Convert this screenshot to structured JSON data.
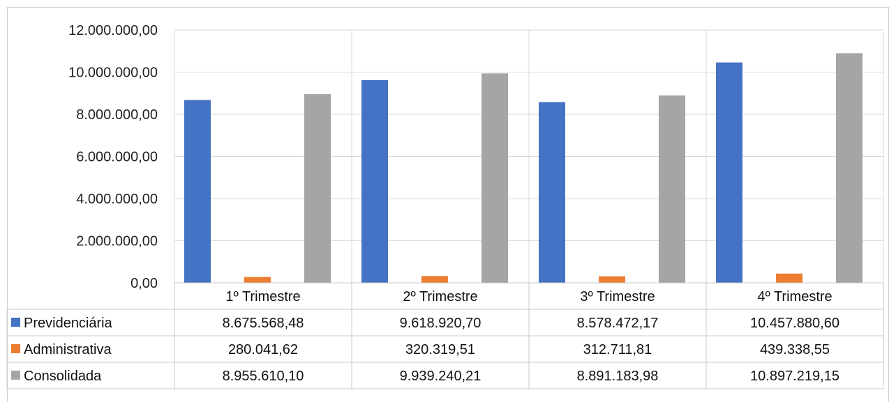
{
  "chart_data": {
    "type": "bar",
    "categories": [
      "1º Trimestre",
      "2º Trimestre",
      "3º Trimestre",
      "4º Trimestre"
    ],
    "series": [
      {
        "name": "Previdenciária",
        "color": "#4472C4",
        "values": [
          8675568.48,
          9618920.7,
          8578472.17,
          10457880.6
        ],
        "labels": [
          "8.675.568,48",
          "9.618.920,70",
          "8.578.472,17",
          "10.457.880,60"
        ]
      },
      {
        "name": "Administrativa",
        "color": "#ED7D31",
        "values": [
          280041.62,
          320319.51,
          312711.81,
          439338.55
        ],
        "labels": [
          "280.041,62",
          "320.319,51",
          "312.711,81",
          "439.338,55"
        ]
      },
      {
        "name": "Consolidada",
        "color": "#A5A5A5",
        "values": [
          8955610.1,
          9939240.21,
          8891183.98,
          10897219.15
        ],
        "labels": [
          "8.955.610,10",
          "9.939.240,21",
          "8.891.183,98",
          "10.897.219,15"
        ]
      }
    ],
    "ylim": [
      0,
      12000000
    ],
    "yticks": [
      "0,00",
      "2.000.000,00",
      "4.000.000,00",
      "6.000.000,00",
      "8.000.000,00",
      "10.000.000,00",
      "12.000.000,00"
    ],
    "grid": true,
    "legend": "data-table"
  }
}
